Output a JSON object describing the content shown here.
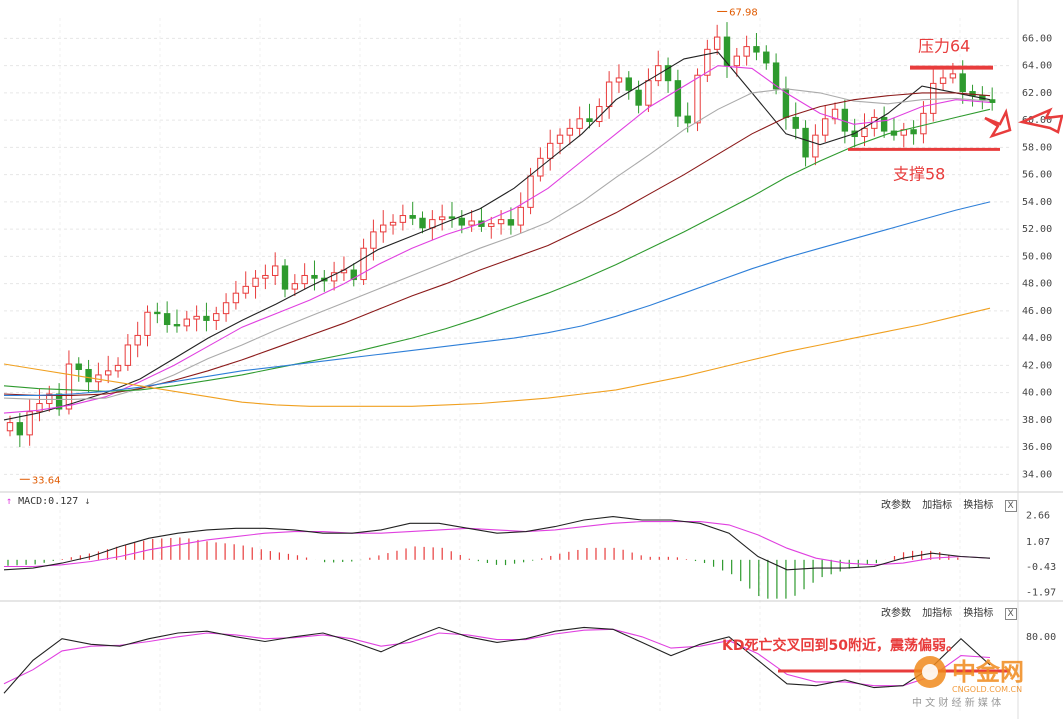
{
  "chart_data": [
    {
      "type": "candlestick",
      "ylim": [
        33,
        67.5
      ],
      "y_ticks": [
        34,
        36,
        38,
        40,
        42,
        44,
        46,
        48,
        50,
        52,
        54,
        56,
        58,
        60,
        62,
        64,
        66
      ],
      "y_tick_labels": [
        "34.00",
        "36.00",
        "38.00",
        "40.00",
        "42.00",
        "44.00",
        "46.00",
        "48.00",
        "50.00",
        "52.00",
        "54.00",
        "56.00",
        "58.00",
        "60.00",
        "62.00",
        "64.00",
        "66.00"
      ],
      "high_label": "67.98",
      "low_label": "33.64",
      "close": [
        37.8,
        36.9,
        38.6,
        39.2,
        39.9,
        38.8,
        42.1,
        41.7,
        40.8,
        41.3,
        41.6,
        42.0,
        43.5,
        44.2,
        45.9,
        45.8,
        45.0,
        44.9,
        45.4,
        45.6,
        45.3,
        45.8,
        46.6,
        47.3,
        47.8,
        48.4,
        48.6,
        49.3,
        47.6,
        48.0,
        48.6,
        48.4,
        48.2,
        48.8,
        49.0,
        48.3,
        50.6,
        51.8,
        52.3,
        52.5,
        53.0,
        52.8,
        52.1,
        52.7,
        52.9,
        52.8,
        52.3,
        52.6,
        52.2,
        52.4,
        52.7,
        52.3,
        53.6,
        55.9,
        57.2,
        58.3,
        58.9,
        59.4,
        60.1,
        59.9,
        61.0,
        62.8,
        63.1,
        62.2,
        61.1,
        62.9,
        64.0,
        62.9,
        60.3,
        59.8,
        63.3,
        65.2,
        66.1,
        64.0,
        64.7,
        65.4,
        65.0,
        64.2,
        62.3,
        60.2,
        59.4,
        57.3,
        58.9,
        60.1,
        60.8,
        59.2,
        58.8,
        59.4,
        60.2,
        59.2,
        58.9,
        59.3,
        59.0,
        60.5,
        62.7,
        63.1,
        63.4,
        62.1,
        61.8,
        61.5,
        61.3
      ],
      "ma": [
        {
          "values": [
            38,
            38.5,
            39.2,
            40,
            41,
            42.5,
            44,
            45.3,
            46.5,
            47.8,
            49,
            50.5,
            51.5,
            52.5,
            53.5,
            55,
            57,
            59,
            61.5,
            63,
            64.5,
            65,
            62,
            59,
            58.2,
            59,
            60.5,
            62.5,
            62,
            61.5
          ],
          "color": "#222222"
        },
        {
          "values": [
            38.5,
            38.7,
            39.1,
            39.7,
            40.8,
            42,
            43.4,
            44.8,
            45.8,
            46.8,
            48,
            49.4,
            50.6,
            51.6,
            52.4,
            53.5,
            55,
            57,
            59,
            61,
            62.5,
            64,
            63.8,
            62,
            60.5,
            59.7,
            60,
            61,
            61.5,
            61.3
          ],
          "color": "#e040e0"
        },
        {
          "values": [
            39.6,
            39.5,
            39.5,
            39.6,
            40.3,
            41.3,
            42.5,
            43.5,
            44.6,
            45.6,
            46.6,
            47.6,
            48.6,
            49.6,
            50.6,
            51.5,
            52.5,
            54,
            55.8,
            57.5,
            59.3,
            60.8,
            62,
            62.3,
            62,
            61.4,
            61.2,
            61.5,
            61.6,
            61.4
          ],
          "color": "#aaaaaa"
        },
        {
          "values": [
            39.9,
            39.8,
            39.8,
            39.9,
            40.3,
            40.9,
            41.6,
            42.4,
            43.3,
            44.2,
            45.1,
            46.1,
            47.1,
            48,
            49,
            49.9,
            50.8,
            52,
            53.2,
            54.6,
            56,
            57.5,
            59,
            60.2,
            61,
            61.5,
            61.8,
            62,
            62,
            61.8
          ],
          "color": "#8b1a1a"
        },
        {
          "values": [
            40.5,
            40.3,
            40.2,
            40.1,
            40.2,
            40.5,
            40.9,
            41.3,
            41.8,
            42.3,
            42.8,
            43.4,
            44,
            44.7,
            45.5,
            46.4,
            47.3,
            48.3,
            49.4,
            50.6,
            51.8,
            53.1,
            54.4,
            55.8,
            57,
            58.1,
            59,
            59.6,
            60.2,
            60.8
          ],
          "color": "#2e9a2e"
        },
        {
          "values": [
            39.8,
            39.8,
            39.9,
            40.1,
            40.4,
            40.8,
            41.2,
            41.6,
            41.9,
            42.2,
            42.5,
            42.8,
            43.1,
            43.4,
            43.7,
            44,
            44.4,
            44.9,
            45.6,
            46.4,
            47.3,
            48.2,
            49.1,
            49.9,
            50.6,
            51.3,
            52,
            52.7,
            53.4,
            54
          ],
          "color": "#2e7fd8"
        },
        {
          "values": [
            42.1,
            41.7,
            41.3,
            40.9,
            40.5,
            40.1,
            39.7,
            39.3,
            39.1,
            39,
            39,
            39,
            39,
            39.1,
            39.2,
            39.4,
            39.6,
            39.9,
            40.2,
            40.7,
            41.2,
            41.8,
            42.4,
            43,
            43.5,
            44,
            44.5,
            45,
            45.6,
            46.2
          ],
          "color": "#f0a020"
        }
      ],
      "annotations": [
        "压力64",
        "支撑58"
      ],
      "resistance": 64,
      "support": 58
    },
    {
      "type": "macd",
      "label": "MACD:0.127",
      "y_tick_labels": [
        "2.66",
        "1.07",
        "-0.43",
        "-1.97"
      ],
      "y_ticks": [
        2.66,
        1.07,
        -0.43,
        -1.97
      ],
      "ylim": [
        -2.3,
        3.0
      ],
      "dif": [
        -0.6,
        -0.5,
        -0.2,
        0.2,
        0.8,
        1.3,
        1.6,
        1.8,
        1.9,
        1.9,
        1.8,
        1.6,
        1.6,
        1.8,
        2.2,
        2.2,
        1.9,
        1.6,
        1.7,
        2.0,
        2.4,
        2.6,
        2.4,
        2.4,
        2.2,
        1.6,
        0.2,
        -0.6,
        -0.5,
        -0.5,
        -0.4,
        0.1,
        0.4,
        0.2,
        0.1
      ],
      "dea": [
        -0.4,
        -0.4,
        -0.3,
        -0.1,
        0.2,
        0.6,
        0.9,
        1.2,
        1.4,
        1.6,
        1.7,
        1.7,
        1.6,
        1.6,
        1.7,
        1.8,
        1.9,
        1.8,
        1.7,
        1.8,
        2.0,
        2.2,
        2.3,
        2.3,
        2.3,
        2.1,
        1.5,
        0.7,
        0.1,
        -0.2,
        -0.3,
        -0.2,
        0.1,
        0.2,
        0.1
      ],
      "histogram": [
        -0.4,
        -0.3,
        0.1,
        0.5,
        1.0,
        1.4,
        1.5,
        1.2,
        1.0,
        0.6,
        0.3,
        -0.2,
        -0.1,
        0.4,
        0.9,
        0.8,
        0.0,
        -0.4,
        -0.1,
        0.4,
        0.8,
        0.8,
        0.2,
        0.2,
        -0.2,
        -1.0,
        -2.6,
        -2.6,
        -1.2,
        -0.6,
        -0.2,
        0.6,
        0.6,
        0.0,
        0.0
      ]
    },
    {
      "type": "kd",
      "y_tick_labels": [
        "80.00"
      ],
      "ylim": [
        0,
        100
      ],
      "k": [
        20,
        55,
        78,
        72,
        70,
        78,
        84,
        86,
        80,
        75,
        80,
        84,
        75,
        64,
        78,
        90,
        80,
        74,
        78,
        86,
        90,
        88,
        74,
        60,
        72,
        80,
        55,
        30,
        28,
        34,
        26,
        28,
        48,
        78,
        50
      ],
      "d": [
        30,
        45,
        65,
        70,
        71,
        75,
        80,
        84,
        82,
        78,
        79,
        82,
        78,
        70,
        74,
        84,
        82,
        77,
        77,
        83,
        87,
        88,
        80,
        68,
        70,
        76,
        62,
        40,
        32,
        32,
        28,
        28,
        38,
        60,
        58
      ],
      "annotation": "KD死亡交叉回到50附近，震荡偏弱。"
    }
  ],
  "toolbar": {
    "btn1": "改参数",
    "btn2": "加指标",
    "btn3": "换指标",
    "close": "X"
  },
  "watermark": {
    "brand": "中金网",
    "domain": "CNGOLD.COM.CN",
    "slogan": "中 文 财 经 新 媒 体"
  },
  "colors": {
    "up": "#e83c3c",
    "down": "#2e9a2e",
    "annotation": "#e83c3c"
  }
}
